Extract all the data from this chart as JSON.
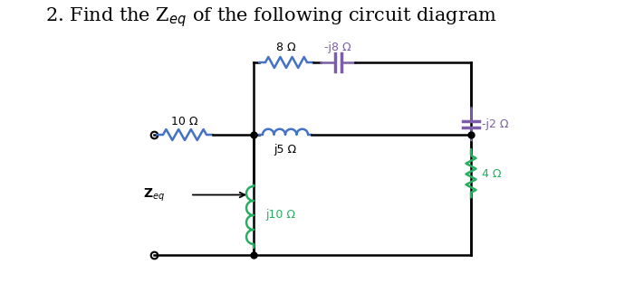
{
  "bg_color": "#ffffff",
  "wire_color": "#000000",
  "color_blue": "#4472c4",
  "color_purple": "#7b5ea7",
  "color_green": "#27ae60",
  "labels": {
    "title": "2. Find the Z$_{eq}$ of the following circuit diagram",
    "r10": "10 Ω",
    "r8": "8 Ω",
    "cj8": "-j8 Ω",
    "lj5": "j5 Ω",
    "lj10": "j10 Ω",
    "cj2": "-j2 Ω",
    "r4": "4 Ω",
    "zeq": "Z$_{eq}$"
  },
  "title_fontsize": 15,
  "label_fontsize": 9
}
